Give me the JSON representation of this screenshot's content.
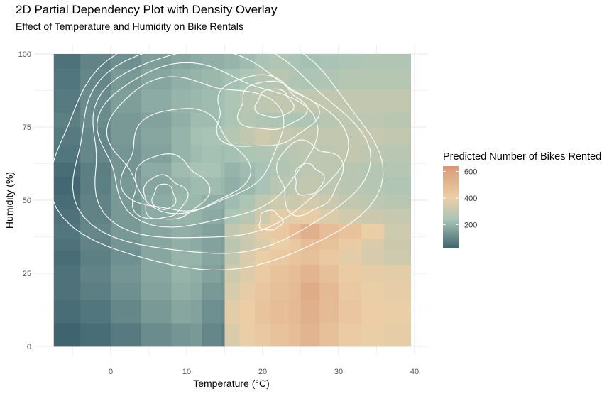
{
  "title": "2D Partial Dependency Plot with Density Overlay",
  "subtitle": "Effect of Temperature and Humidity on Bike Rentals",
  "chart_data": {
    "type": "heatmap",
    "title": "2D Partial Dependency Plot with Density Overlay",
    "subtitle": "Effect of Temperature and Humidity on Bike Rentals",
    "xlabel": "Temperature (°C)",
    "ylabel": "Humidity (%)",
    "xlim": [
      -7.5,
      39.5
    ],
    "ylim": [
      0,
      100
    ],
    "x_ticks": [
      0,
      10,
      20,
      30,
      40
    ],
    "y_ticks": [
      0,
      25,
      50,
      75,
      100
    ],
    "grid": true,
    "legend_title": "Predicted Number of Bikes Rented",
    "legend_ticks": [
      200,
      400,
      600
    ],
    "color_range": [
      20,
      640
    ],
    "legend_position": "right",
    "colors": {
      "low": "#3f6470",
      "mid": "#a8c4b6",
      "midhigh": "#eccea6",
      "high": "#d89a78",
      "contour": "#ffffff",
      "grid": "#e8e8e8"
    },
    "temperature_bins": [
      -7.5,
      -4,
      0,
      4,
      8,
      10.5,
      12,
      14.5,
      15,
      17,
      19,
      21,
      23.5,
      25,
      27.5,
      30,
      33,
      36,
      39.5
    ],
    "humidity_bins": [
      0,
      8,
      16,
      22,
      28,
      33,
      37,
      42,
      47,
      52,
      58,
      63,
      69,
      75,
      80,
      88,
      95,
      100
    ],
    "values": [
      [
        20,
        40,
        70,
        110,
        130,
        140,
        100,
        80,
        360,
        400,
        430,
        460,
        480,
        520,
        470,
        420,
        400,
        390
      ],
      [
        40,
        60,
        100,
        140,
        170,
        160,
        120,
        110,
        380,
        410,
        450,
        480,
        500,
        540,
        490,
        440,
        410,
        400
      ],
      [
        50,
        80,
        120,
        160,
        190,
        180,
        140,
        130,
        350,
        390,
        440,
        470,
        490,
        560,
        500,
        430,
        400,
        390
      ],
      [
        50,
        90,
        130,
        170,
        200,
        190,
        160,
        140,
        330,
        370,
        420,
        460,
        480,
        520,
        470,
        420,
        390,
        380
      ],
      [
        40,
        80,
        120,
        170,
        200,
        200,
        170,
        160,
        300,
        360,
        400,
        430,
        450,
        470,
        430,
        380,
        350,
        330
      ],
      [
        50,
        90,
        130,
        170,
        190,
        180,
        160,
        150,
        280,
        320,
        360,
        400,
        430,
        480,
        460,
        420,
        360,
        320
      ],
      [
        60,
        100,
        140,
        170,
        190,
        180,
        160,
        150,
        300,
        330,
        380,
        430,
        480,
        540,
        480,
        460,
        400,
        330
      ],
      [
        50,
        90,
        140,
        180,
        200,
        200,
        180,
        170,
        250,
        280,
        330,
        380,
        380,
        390,
        360,
        340,
        320,
        310
      ],
      [
        40,
        90,
        140,
        180,
        210,
        210,
        190,
        180,
        220,
        250,
        300,
        330,
        320,
        340,
        320,
        300,
        290,
        280
      ],
      [
        30,
        80,
        140,
        170,
        200,
        220,
        220,
        210,
        190,
        210,
        240,
        280,
        290,
        300,
        290,
        280,
        270,
        260
      ],
      [
        40,
        80,
        130,
        180,
        220,
        240,
        240,
        220,
        200,
        220,
        240,
        260,
        270,
        290,
        290,
        280,
        270,
        270
      ],
      [
        60,
        100,
        130,
        160,
        200,
        220,
        230,
        220,
        230,
        250,
        260,
        270,
        280,
        290,
        290,
        300,
        290,
        280
      ],
      [
        70,
        100,
        140,
        170,
        200,
        230,
        240,
        250,
        270,
        300,
        330,
        310,
        300,
        300,
        300,
        300,
        310,
        300
      ],
      [
        80,
        110,
        140,
        160,
        190,
        220,
        220,
        230,
        250,
        270,
        260,
        250,
        250,
        260,
        280,
        290,
        290,
        280
      ],
      [
        70,
        110,
        150,
        180,
        200,
        210,
        220,
        230,
        250,
        280,
        290,
        300,
        300,
        300,
        300,
        300,
        300,
        300
      ],
      [
        60,
        100,
        140,
        170,
        190,
        200,
        210,
        220,
        230,
        250,
        270,
        280,
        260,
        250,
        260,
        270,
        270,
        270
      ],
      [
        50,
        90,
        120,
        150,
        170,
        180,
        190,
        190,
        200,
        220,
        240,
        260,
        240,
        230,
        240,
        250,
        260,
        260
      ]
    ]
  }
}
